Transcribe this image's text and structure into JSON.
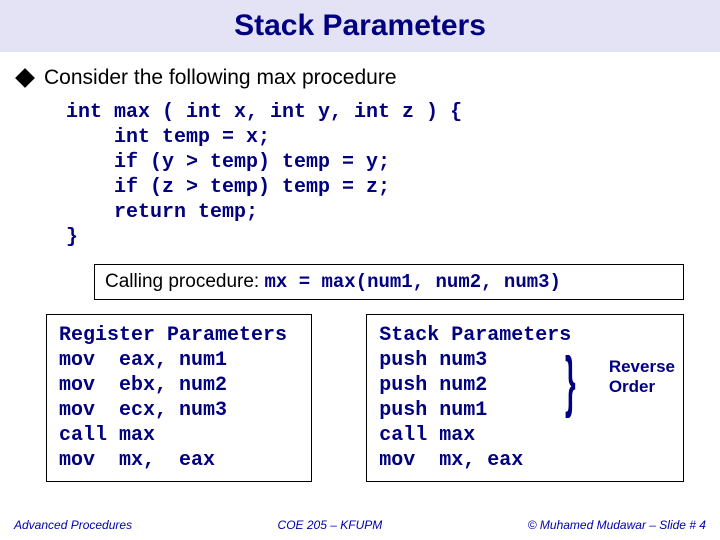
{
  "title": "Stack Parameters",
  "bullet": "Consider the following max procedure",
  "code": "int max ( int x, int y, int z ) {\n    int temp = x;\n    if (y > temp) temp = y;\n    if (z > temp) temp = z;\n    return temp;\n}",
  "calling_label": "Calling procedure: ",
  "calling_code": "mx = max(num1, num2, num3)",
  "left_box": {
    "title": "Register Parameters",
    "lines": [
      "mov  eax, num1",
      "mov  ebx, num2",
      "mov  ecx, num3",
      "call max",
      "mov  mx,  eax"
    ]
  },
  "right_box": {
    "title": "Stack Parameters",
    "lines": [
      "push num3",
      "push num2",
      "push num1",
      "call max",
      "mov  mx, eax"
    ]
  },
  "reverse_l1": "Reverse",
  "reverse_l2": "Order",
  "footer": {
    "left": "Advanced Procedures",
    "center": "COE 205 – KFUPM",
    "right": "© Muhamed Mudawar – Slide # 4"
  },
  "colors": {
    "title_bg": "#e4e3f6",
    "title_fg": "#000080",
    "code_fg": "#000080",
    "footer_fg": "#0000aa"
  }
}
